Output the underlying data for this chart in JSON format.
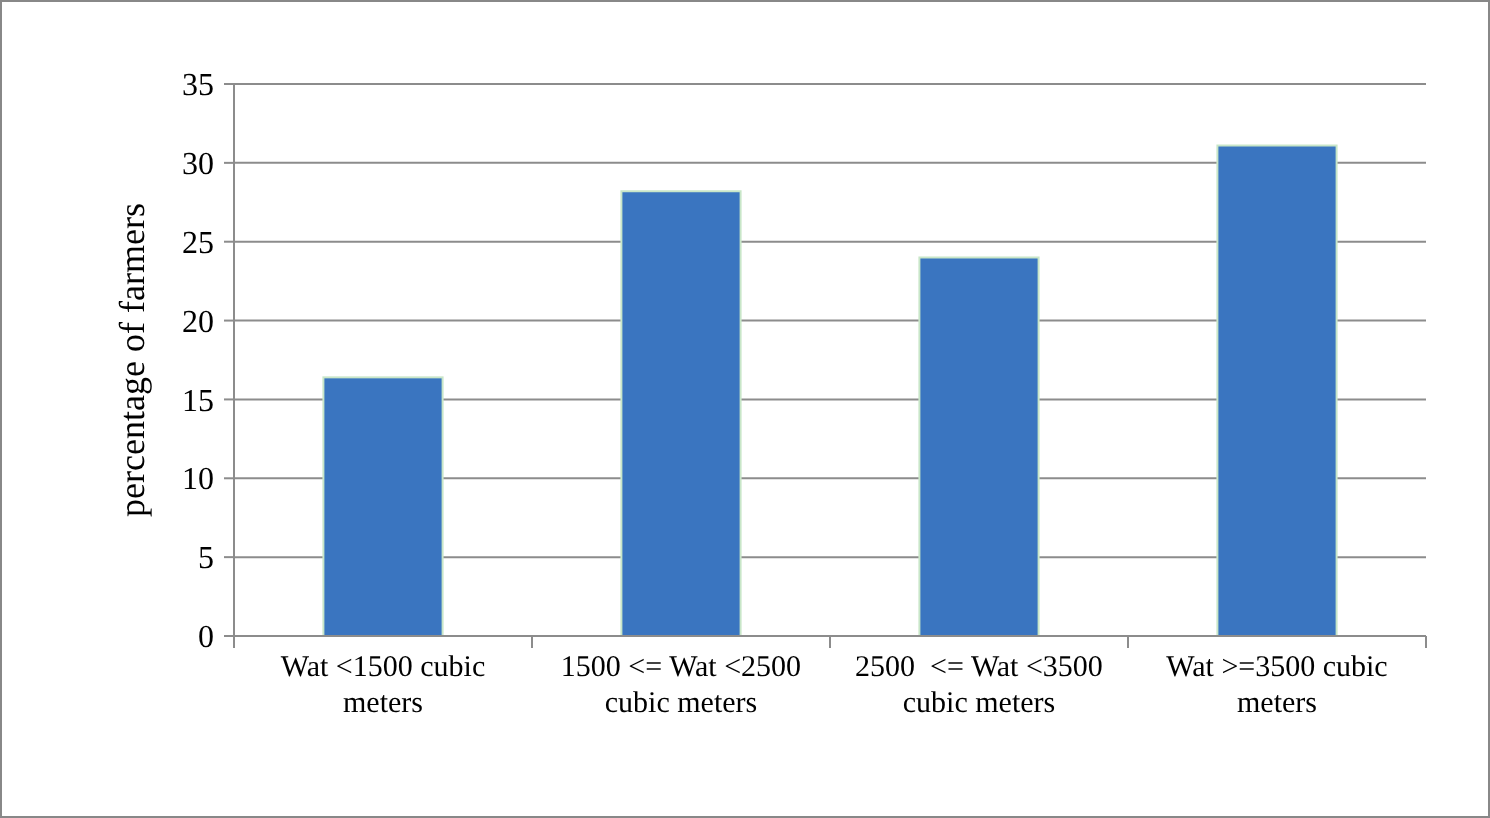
{
  "chart_data": {
    "type": "bar",
    "ylabel": "percentage of farmers",
    "categories": [
      "Wat <1500 cubic meters",
      "1500 <= Wat <2500 cubic meters",
      "2500  <= Wat <3500 cubic meters",
      "Wat >=3500 cubic meters"
    ],
    "values": [
      16.4,
      28.2,
      24.0,
      31.1
    ],
    "color": "#3a75c0",
    "ylim": [
      0,
      35
    ],
    "yticks": [
      0,
      5,
      10,
      15,
      20,
      25,
      30,
      35
    ],
    "grid": "y"
  }
}
